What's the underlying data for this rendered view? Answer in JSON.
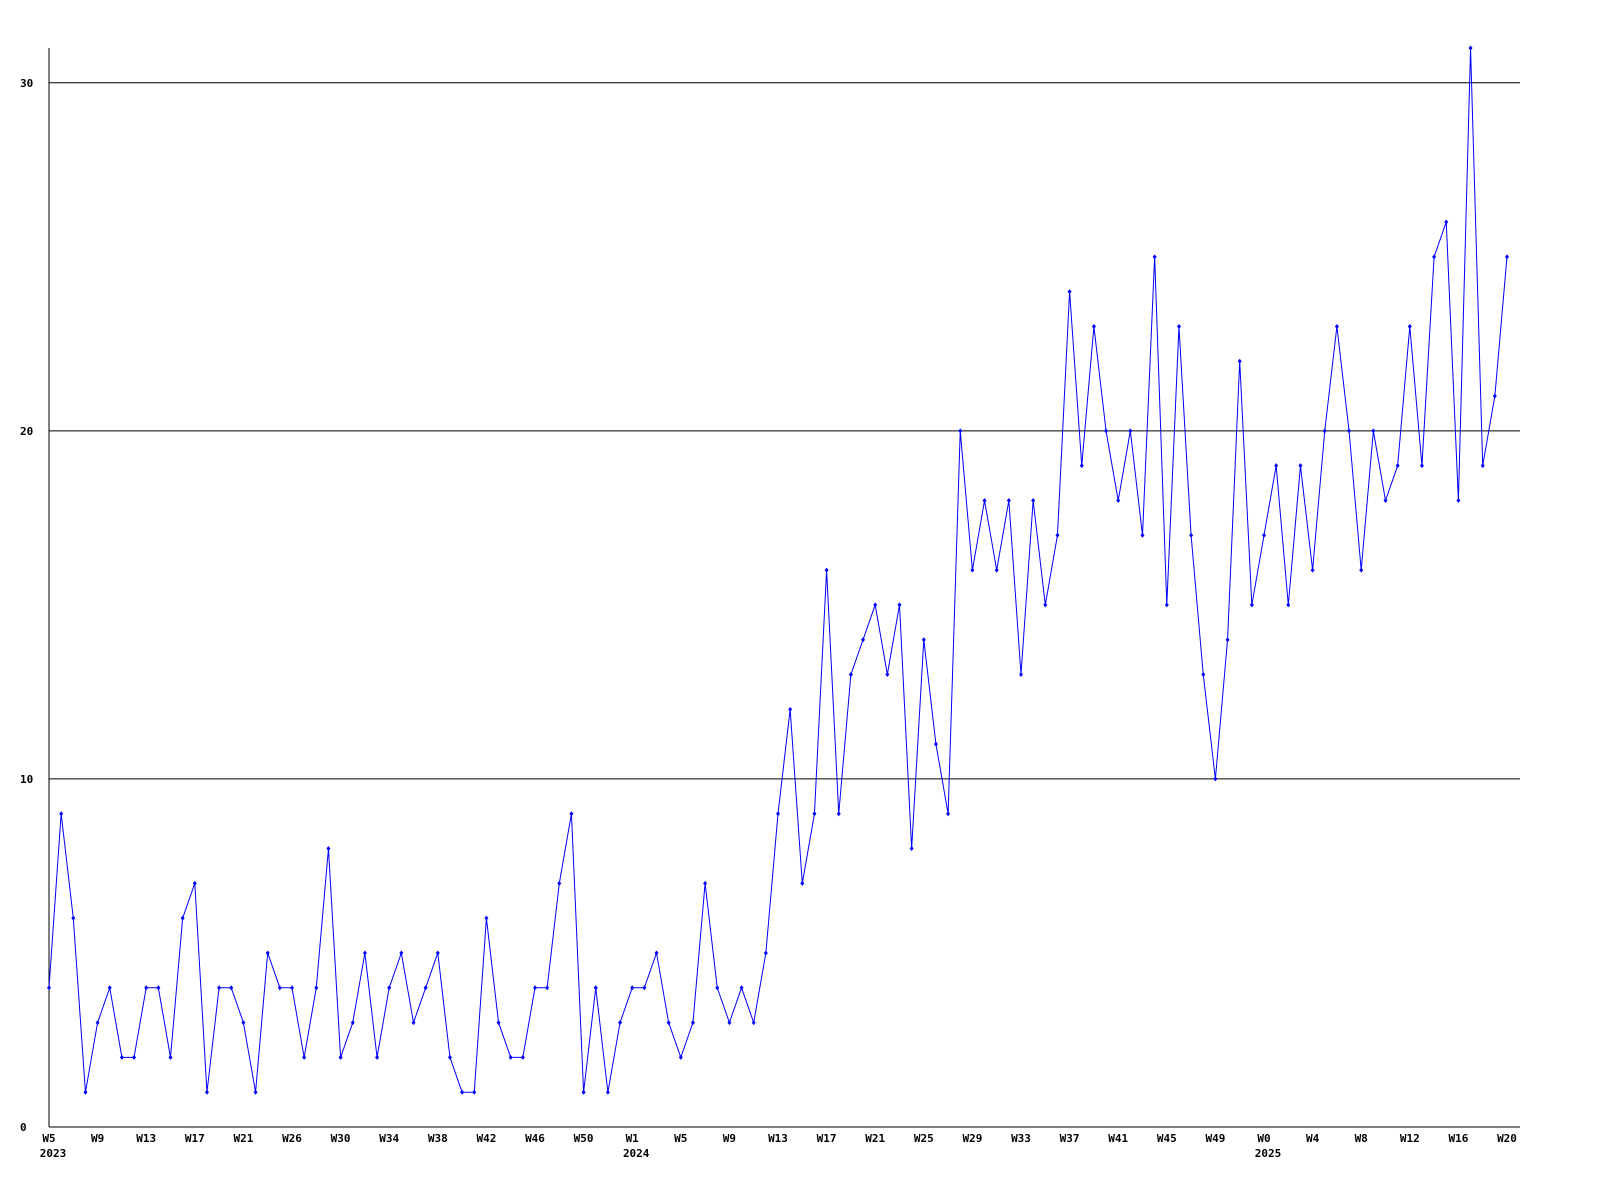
{
  "chart_data": {
    "type": "line",
    "categories": [
      "W5",
      null,
      null,
      null,
      "W9",
      null,
      null,
      null,
      "W13",
      null,
      null,
      null,
      "W17",
      null,
      null,
      null,
      "W21",
      null,
      null,
      null,
      "W26",
      null,
      null,
      null,
      "W30",
      null,
      null,
      null,
      "W34",
      null,
      null,
      null,
      "W38",
      null,
      null,
      null,
      "W42",
      null,
      null,
      null,
      "W46",
      null,
      null,
      null,
      "W50",
      null,
      null,
      null,
      "W1",
      null,
      null,
      null,
      "W5",
      null,
      null,
      null,
      "W9",
      null,
      null,
      null,
      "W13",
      null,
      null,
      null,
      "W17",
      null,
      null,
      null,
      "W21",
      null,
      null,
      null,
      "W25",
      null,
      null,
      null,
      "W29",
      null,
      null,
      null,
      "W33",
      null,
      null,
      null,
      "W37",
      null,
      null,
      null,
      "W41",
      null,
      null,
      null,
      "W45",
      null,
      null,
      null,
      "W49",
      null,
      null,
      null,
      "W0",
      null,
      null,
      null,
      "W4",
      null,
      null,
      null,
      "W8",
      null,
      null,
      null,
      "W12",
      null,
      null,
      null,
      "W16",
      null,
      null,
      null,
      "W20"
    ],
    "years": [
      "2023",
      null,
      null,
      null,
      null,
      null,
      null,
      null,
      null,
      null,
      null,
      null,
      null,
      null,
      null,
      null,
      null,
      null,
      null,
      null,
      null,
      null,
      null,
      null,
      null,
      null,
      null,
      null,
      null,
      null,
      null,
      null,
      null,
      null,
      null,
      null,
      null,
      null,
      null,
      null,
      null,
      null,
      null,
      null,
      null,
      null,
      null,
      null,
      "2024",
      null,
      null,
      null,
      null,
      null,
      null,
      null,
      null,
      null,
      null,
      null,
      null,
      null,
      null,
      null,
      null,
      null,
      null,
      null,
      null,
      null,
      null,
      null,
      null,
      null,
      null,
      null,
      null,
      null,
      null,
      null,
      null,
      null,
      null,
      null,
      null,
      null,
      null,
      null,
      null,
      null,
      null,
      null,
      null,
      null,
      null,
      null,
      null,
      null,
      null,
      null,
      "2025",
      null,
      null,
      null,
      null,
      null,
      null,
      null,
      null,
      null,
      null,
      null,
      null,
      null,
      null,
      null,
      null,
      null,
      null,
      null,
      null
    ],
    "series": [
      {
        "color": "#0000ff",
        "values": [
          4,
          9,
          6,
          1,
          3,
          4,
          2,
          2,
          4,
          4,
          2,
          6,
          7,
          1,
          4,
          4,
          3,
          1,
          5,
          4,
          4,
          2,
          4,
          8,
          2,
          3,
          5,
          2,
          4,
          5,
          3,
          4,
          5,
          2,
          1,
          1,
          6,
          3,
          2,
          2,
          4,
          4,
          7,
          9,
          1,
          4,
          1,
          3,
          4,
          4,
          5,
          3,
          2,
          3,
          7,
          4,
          3,
          4,
          3,
          5,
          9,
          12,
          7,
          9,
          16,
          9,
          13,
          14,
          15,
          13,
          15,
          8,
          14,
          11,
          9,
          20,
          16,
          18,
          16,
          18,
          13,
          18,
          15,
          17,
          24,
          19,
          23,
          20,
          18,
          20,
          17,
          25,
          15,
          23,
          17,
          13,
          10,
          14,
          22,
          15,
          17,
          19,
          15,
          19,
          16,
          20,
          23,
          20,
          16,
          20,
          18,
          19,
          23,
          19,
          25,
          26,
          18,
          31,
          19,
          21,
          25
        ]
      }
    ],
    "ylim": [
      0,
      31
    ],
    "yticks": [
      0,
      10,
      20,
      30
    ],
    "grid": true
  }
}
